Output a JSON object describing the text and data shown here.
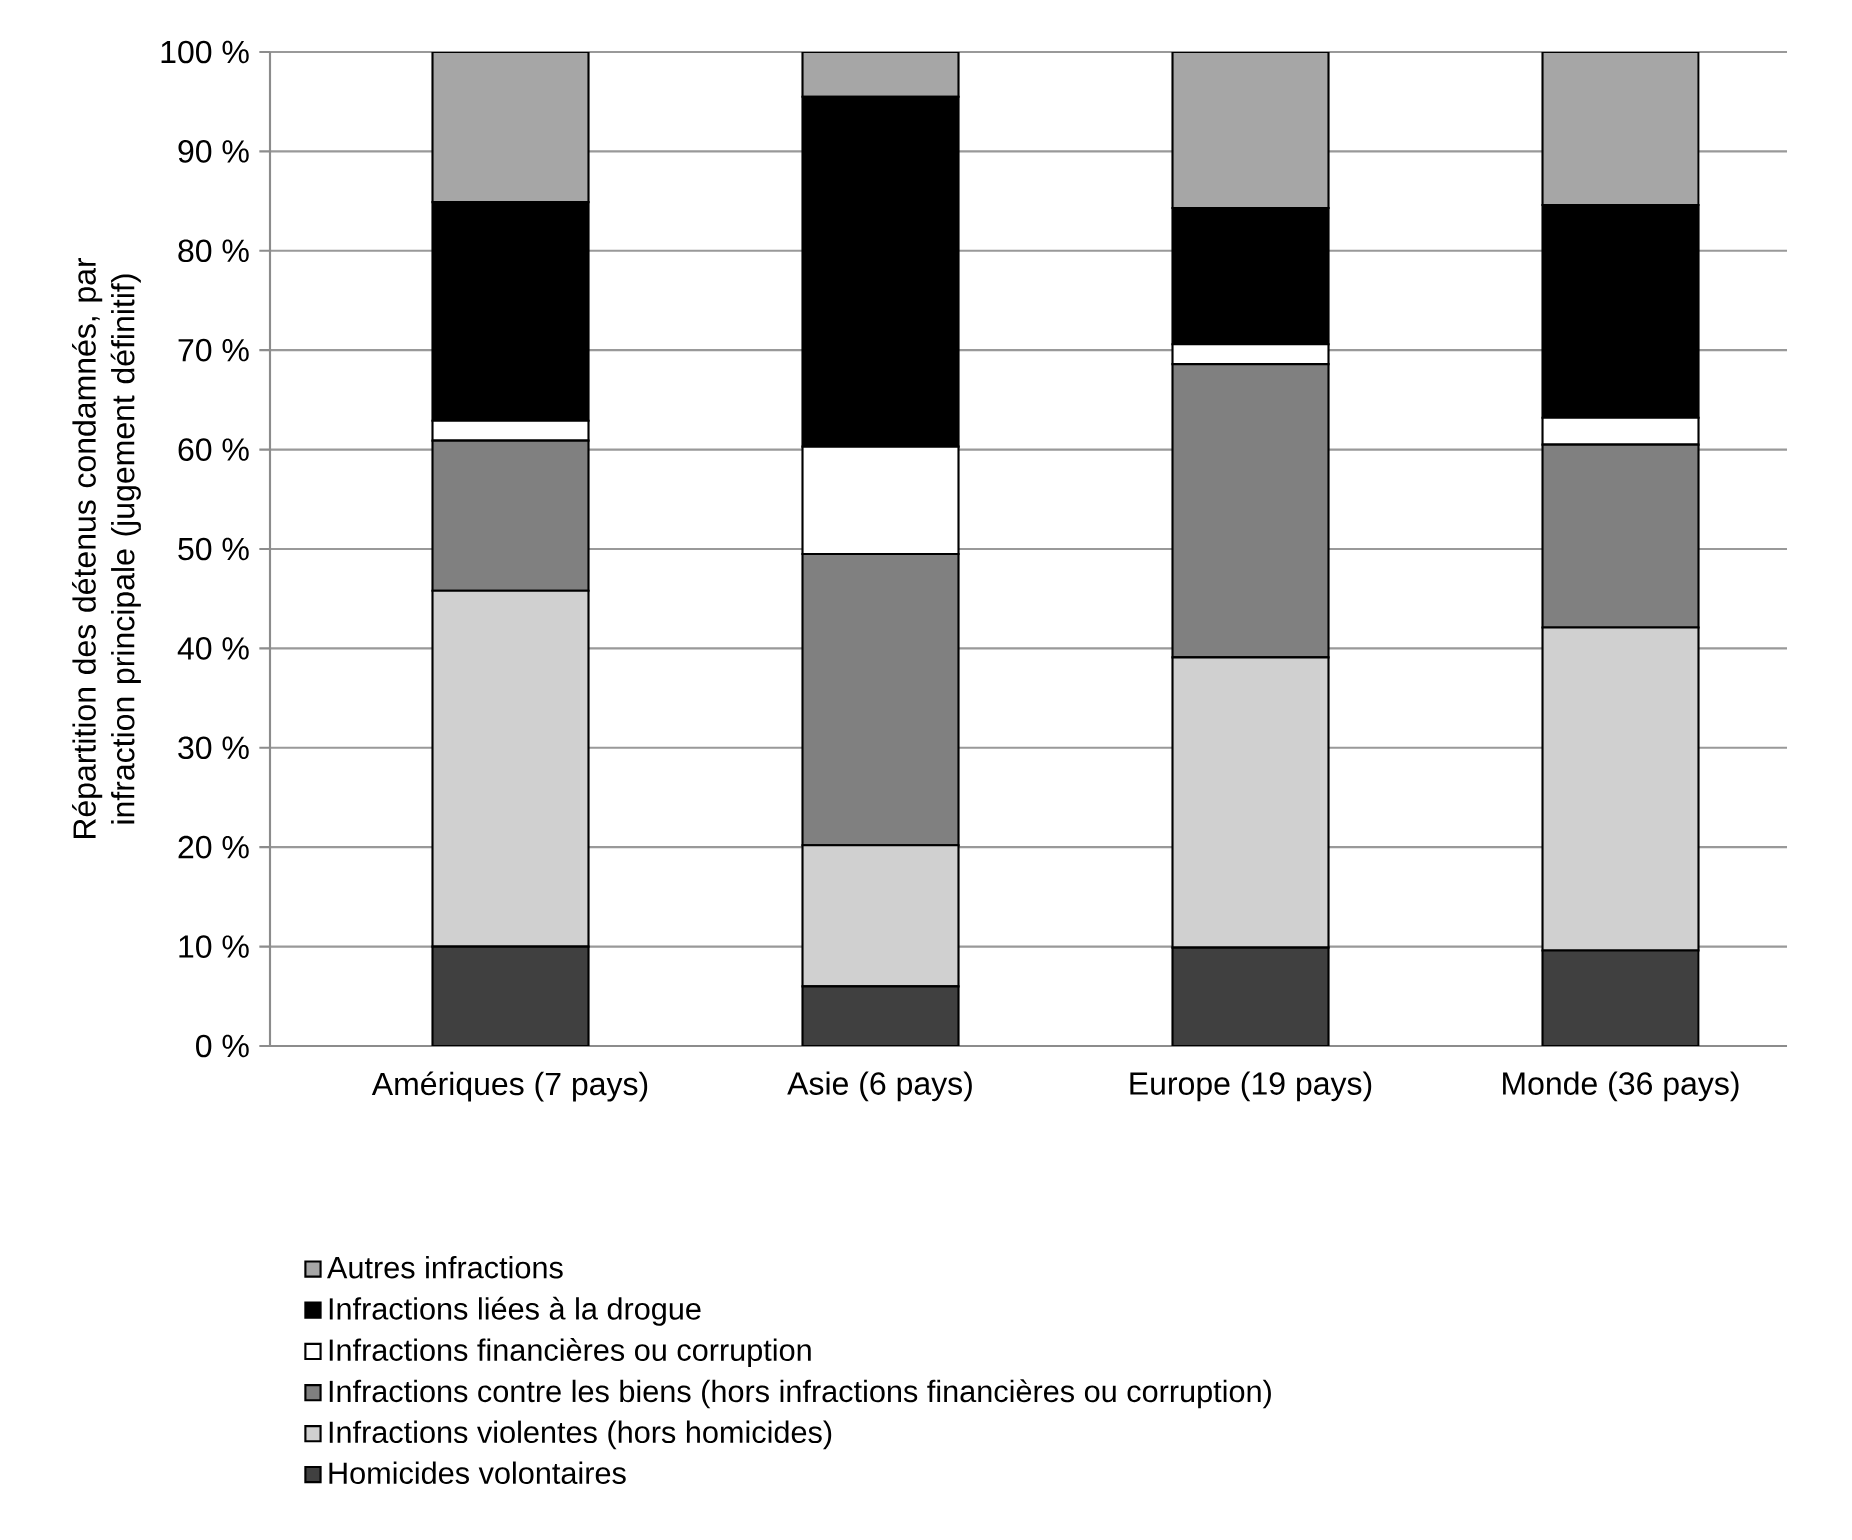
{
  "chart_data": {
    "type": "bar",
    "stacked": true,
    "ylabel": "Répartition des détenus condamnés, par infraction principale (jugement définitif)",
    "categories": [
      "Amériques (7 pays)",
      "Asie (6 pays)",
      "Europe (19 pays)",
      "Monde (36 pays)"
    ],
    "series": [
      {
        "name": "Homicides volontaires",
        "color": "#404040",
        "values": [
          10.0,
          6.0,
          9.9,
          9.6
        ]
      },
      {
        "name": "Infractions violentes (hors homicides)",
        "color": "#d0d0d0",
        "values": [
          35.8,
          14.2,
          29.2,
          32.5
        ]
      },
      {
        "name": "Infractions contre les biens (hors infractions financières ou corruption)",
        "color": "#808080",
        "values": [
          15.1,
          29.3,
          29.5,
          18.4
        ]
      },
      {
        "name": "Infractions financières ou corruption",
        "color": "#ffffff",
        "values": [
          2.0,
          10.8,
          2.0,
          2.7
        ]
      },
      {
        "name": "Infractions liées à la drogue",
        "color": "#000000",
        "values": [
          22.0,
          35.2,
          13.7,
          21.4
        ]
      },
      {
        "name": "Autres infractions",
        "color": "#a6a6a6",
        "values": [
          15.1,
          4.5,
          15.7,
          15.4
        ]
      }
    ],
    "ylim": [
      0,
      100
    ],
    "yticks": [
      {
        "value": 0,
        "label": "0 %"
      },
      {
        "value": 10,
        "label": "10 %"
      },
      {
        "value": 20,
        "label": "20 %"
      },
      {
        "value": 30,
        "label": "30 %"
      },
      {
        "value": 40,
        "label": "40 %"
      },
      {
        "value": 50,
        "label": "50 %"
      },
      {
        "value": 60,
        "label": "60 %"
      },
      {
        "value": 70,
        "label": "70 %"
      },
      {
        "value": 80,
        "label": "80 %"
      },
      {
        "value": 90,
        "label": "90 %"
      },
      {
        "value": 100,
        "label": "100 %"
      }
    ],
    "grid": "y",
    "legend": "bottom"
  }
}
